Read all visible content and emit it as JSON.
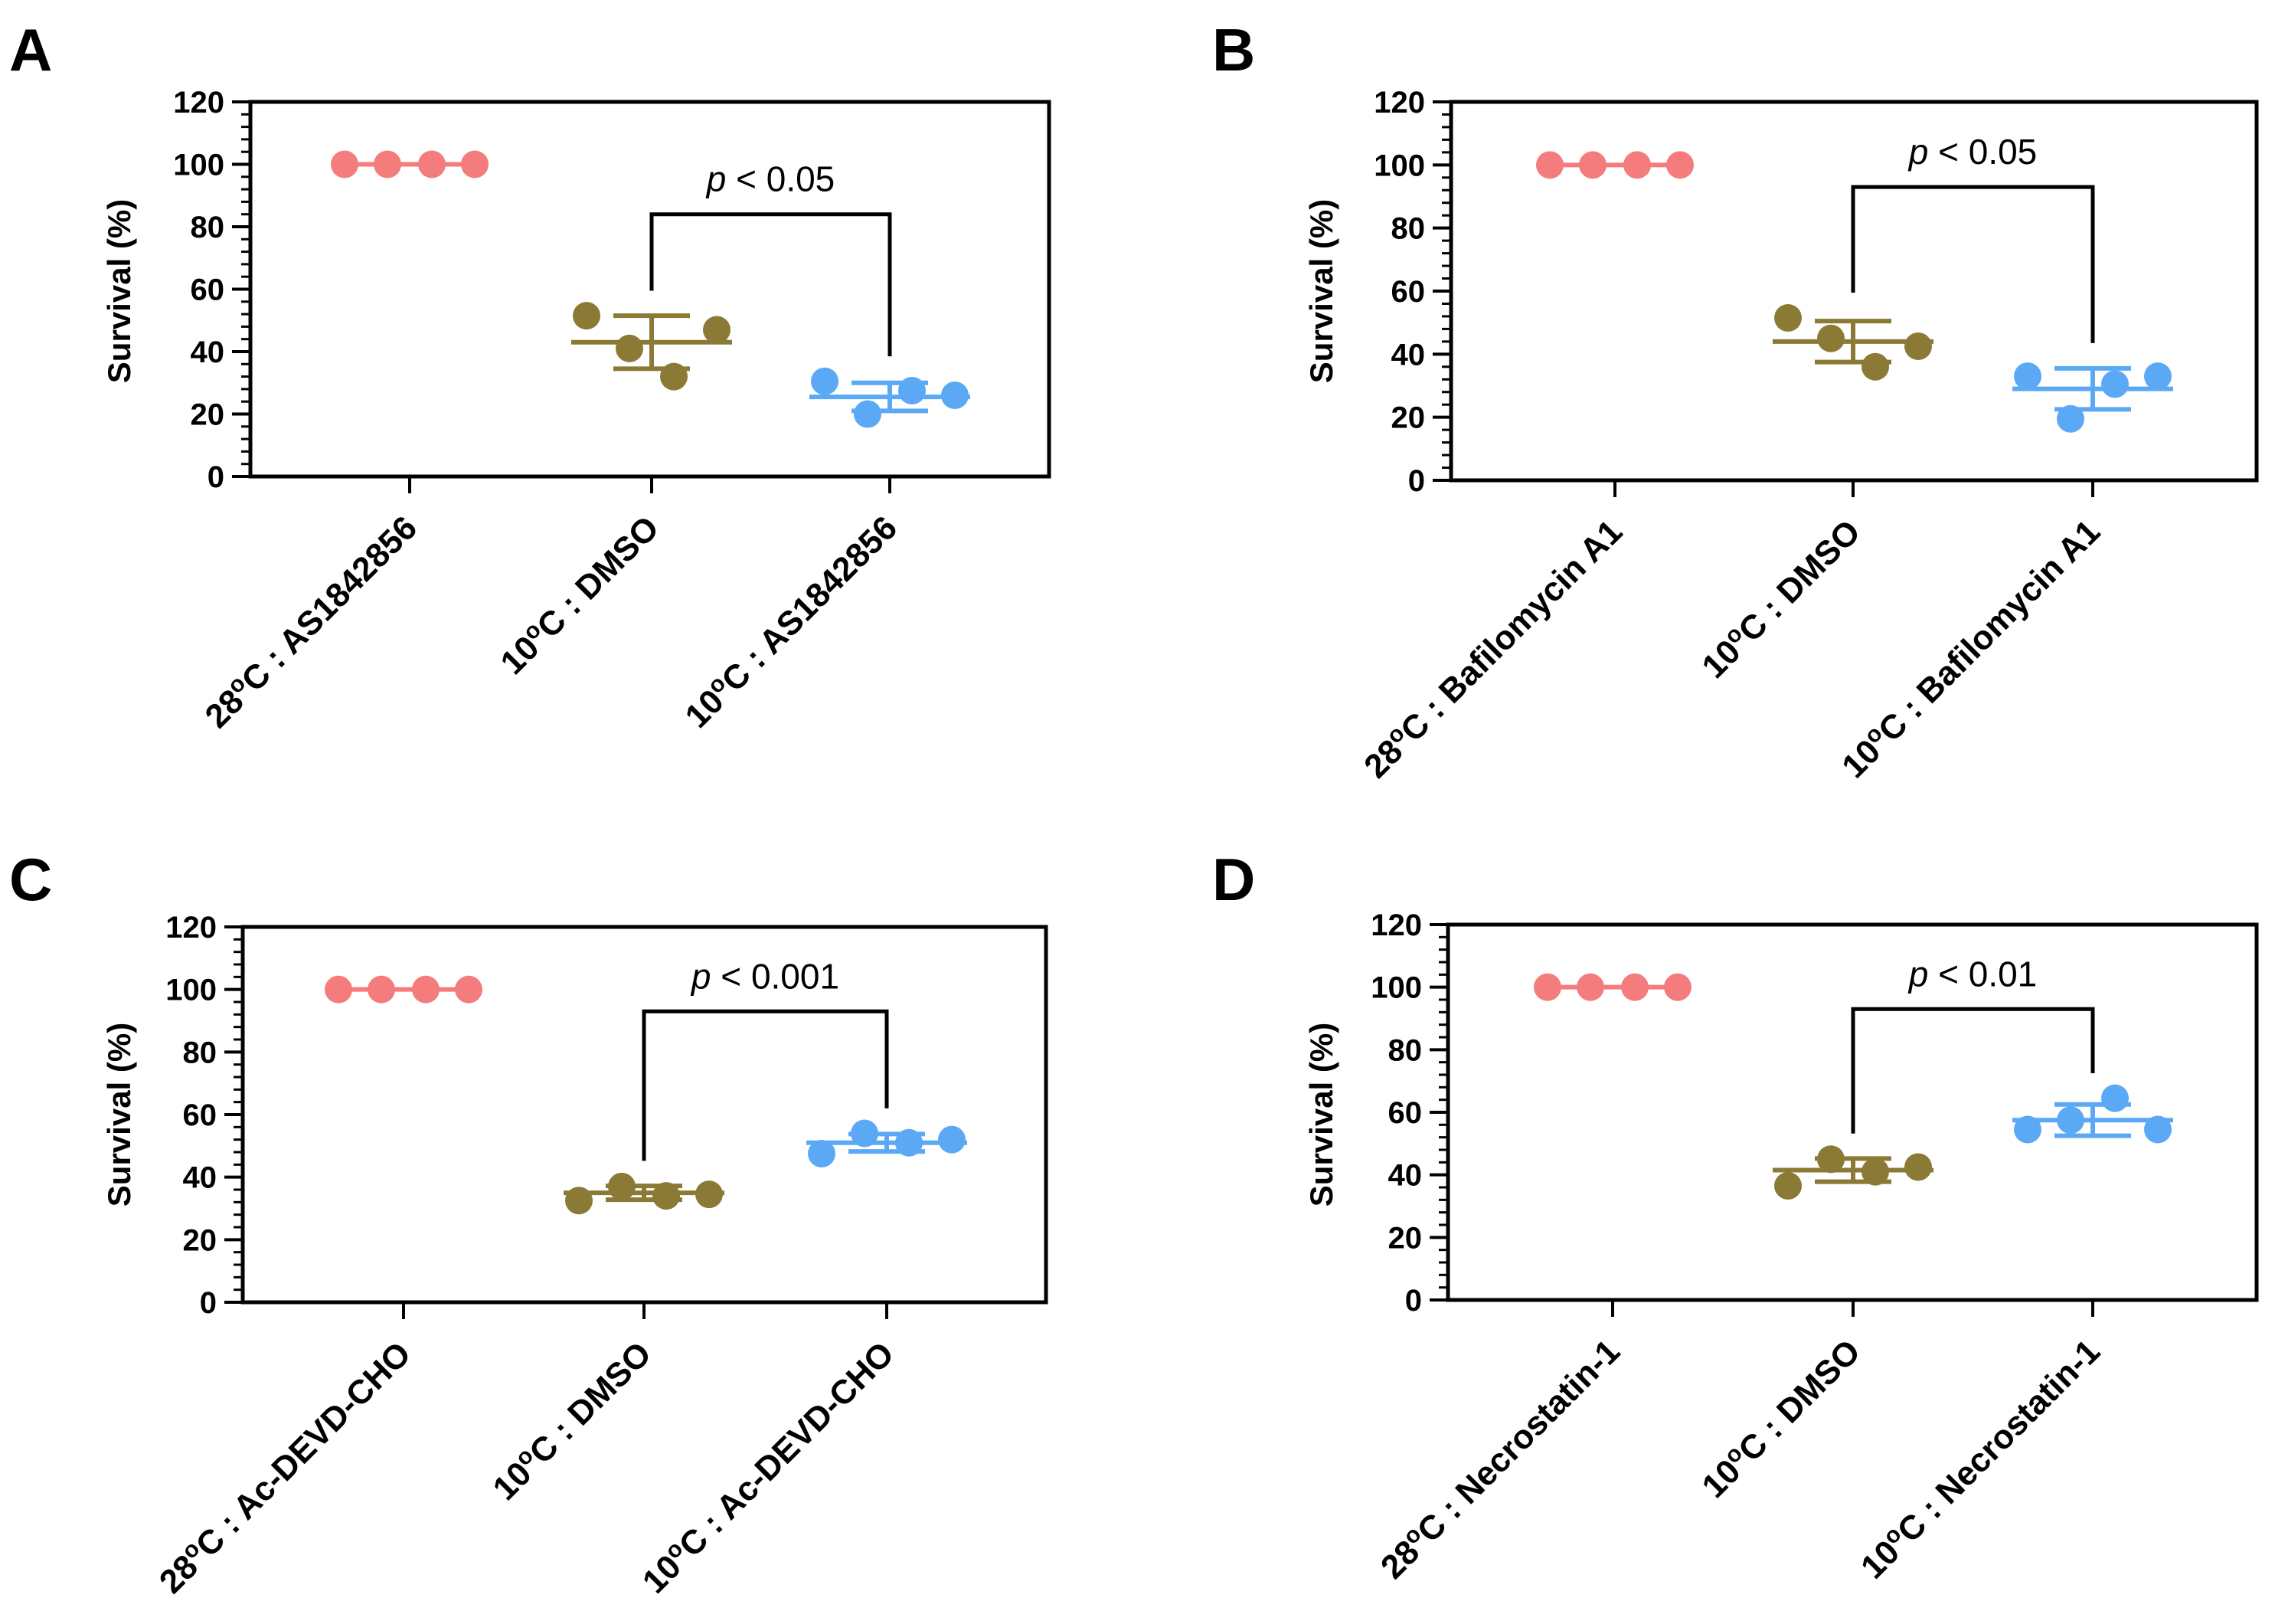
{
  "chart_data": [
    {
      "panel": "A",
      "type": "scatter",
      "ylabel": "Survival (%)",
      "ylim": [
        0,
        120
      ],
      "yticks": [
        0,
        20,
        40,
        60,
        80,
        100,
        120
      ],
      "categories": [
        {
          "prefix": "28",
          "suffix": "C :  AS1842856"
        },
        {
          "prefix": "10",
          "suffix": "C : DMSO"
        },
        {
          "prefix": "10",
          "suffix": "C :  AS1842856"
        }
      ],
      "series": [
        {
          "name": "28°C : AS1842856",
          "color": "#F47C7C",
          "points": [
            100,
            100,
            100,
            100
          ],
          "mean": null,
          "sd": null
        },
        {
          "name": "10°C : DMSO",
          "color": "#8B7A35",
          "points": [
            51.5,
            41,
            32,
            47
          ],
          "mean": 43,
          "sd": 8.5
        },
        {
          "name": "10°C : AS1842856",
          "color": "#5BA9F5",
          "points": [
            30.5,
            20,
            27.5,
            26
          ],
          "mean": 25.5,
          "sd": 4.5
        }
      ],
      "comparison": {
        "from": 1,
        "to": 2,
        "y": 84,
        "label_italic": "p",
        "label_rest": " < 0.05"
      }
    },
    {
      "panel": "B",
      "type": "scatter",
      "ylabel": "Survival (%)",
      "ylim": [
        0,
        120
      ],
      "yticks": [
        0,
        20,
        40,
        60,
        80,
        100,
        120
      ],
      "categories": [
        {
          "prefix": "28",
          "suffix": "C : Bafilomycin A1"
        },
        {
          "prefix": "10",
          "suffix": "C : DMSO"
        },
        {
          "prefix": "10",
          "suffix": "C : Bafilomycin A1"
        }
      ],
      "series": [
        {
          "name": "28°C : Bafilomycin A1",
          "color": "#F47C7C",
          "points": [
            100,
            100,
            100,
            100
          ],
          "mean": null,
          "sd": null
        },
        {
          "name": "10°C : DMSO",
          "color": "#8B7A35",
          "points": [
            51.5,
            45,
            36,
            42.5
          ],
          "mean": 44,
          "sd": 6.5
        },
        {
          "name": "10°C : Bafilomycin A1",
          "color": "#5BA9F5",
          "points": [
            33,
            19.5,
            30.5,
            33
          ],
          "mean": 29,
          "sd": 6.5
        }
      ],
      "comparison": {
        "from": 1,
        "to": 2,
        "y": 93,
        "label_italic": "p",
        "label_rest": " < 0.05"
      }
    },
    {
      "panel": "C",
      "type": "scatter",
      "ylabel": "Survival (%)",
      "ylim": [
        0,
        120
      ],
      "yticks": [
        0,
        20,
        40,
        60,
        80,
        100,
        120
      ],
      "categories": [
        {
          "prefix": "28",
          "suffix": "C :  Ac-DEVD-CHO"
        },
        {
          "prefix": "10",
          "suffix": "C : DMSO"
        },
        {
          "prefix": "10",
          "suffix": "C : Ac-DEVD-CHO"
        }
      ],
      "series": [
        {
          "name": "28°C : Ac-DEVD-CHO",
          "color": "#F47C7C",
          "points": [
            100,
            100,
            100,
            100
          ],
          "mean": null,
          "sd": null
        },
        {
          "name": "10°C : DMSO",
          "color": "#8B7A35",
          "points": [
            32.5,
            37,
            34,
            34.5
          ],
          "mean": 35,
          "sd": 2.2
        },
        {
          "name": "10°C : Ac-DEVD-CHO",
          "color": "#5BA9F5",
          "points": [
            47.5,
            54,
            51,
            52
          ],
          "mean": 51,
          "sd": 2.8
        }
      ],
      "comparison": {
        "from": 1,
        "to": 2,
        "y": 93,
        "label_italic": "p",
        "label_rest": " < 0.001"
      }
    },
    {
      "panel": "D",
      "type": "scatter",
      "ylabel": "Survival (%)",
      "ylim": [
        0,
        120
      ],
      "yticks": [
        0,
        20,
        40,
        60,
        80,
        100,
        120
      ],
      "categories": [
        {
          "prefix": "28",
          "suffix": "C : Necrostatin-1"
        },
        {
          "prefix": "10",
          "suffix": "C : DMSO"
        },
        {
          "prefix": "10",
          "suffix": "C : Necrostatin-1"
        }
      ],
      "series": [
        {
          "name": "28°C : Necrostatin-1",
          "color": "#F47C7C",
          "points": [
            100,
            100,
            100,
            100
          ],
          "mean": null,
          "sd": null
        },
        {
          "name": "10°C : DMSO",
          "color": "#8B7A35",
          "points": [
            36.5,
            45,
            41,
            42.5
          ],
          "mean": 41.5,
          "sd": 3.7
        },
        {
          "name": "10°C : Necrostatin-1",
          "color": "#5BA9F5",
          "points": [
            54.5,
            57.5,
            64.5,
            54.5
          ],
          "mean": 57.5,
          "sd": 5
        }
      ],
      "comparison": {
        "from": 1,
        "to": 2,
        "y": 93,
        "label_italic": "p",
        "label_rest": " < 0.01"
      }
    }
  ]
}
